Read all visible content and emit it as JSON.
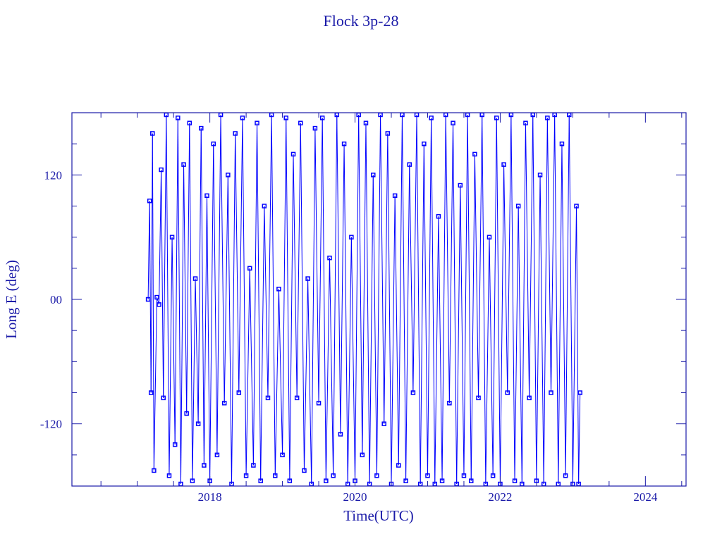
{
  "chart_data": {
    "type": "line",
    "title": "Flock 3p-28",
    "xlabel": "Time(UTC)",
    "ylabel": "Long E (deg)",
    "xlim": [
      2016.1,
      2024.56
    ],
    "ylim": [
      -180,
      180
    ],
    "xticks": [
      2018,
      2020,
      2022,
      2024
    ],
    "xtick_labels": [
      "2018",
      "2020",
      "2022",
      "2024"
    ],
    "yticks": [
      120,
      0,
      -120
    ],
    "ytick_labels": [
      "120",
      "00",
      "-120"
    ],
    "grid": false,
    "markers": "square",
    "colors": {
      "series": "#0000ff",
      "axes": "#1a1aa8",
      "text": "#1a1aa8"
    },
    "series": [
      {
        "x": [
          2017.15,
          2017.17,
          2017.19,
          2017.21,
          2017.23,
          2017.27,
          2017.3,
          2017.33,
          2017.36,
          2017.4,
          2017.44,
          2017.48,
          2017.52,
          2017.56,
          2017.6,
          2017.64,
          2017.68,
          2017.72,
          2017.76,
          2017.8,
          2017.84,
          2017.88,
          2017.92,
          2017.96,
          2018.0,
          2018.05,
          2018.1,
          2018.15,
          2018.2,
          2018.25,
          2018.3,
          2018.35,
          2018.4,
          2018.45,
          2018.5,
          2018.55,
          2018.6,
          2018.65,
          2018.7,
          2018.75,
          2018.8,
          2018.85,
          2018.9,
          2018.95,
          2019.0,
          2019.05,
          2019.1,
          2019.15,
          2019.2,
          2019.25,
          2019.3,
          2019.35,
          2019.4,
          2019.45,
          2019.5,
          2019.55,
          2019.6,
          2019.65,
          2019.7,
          2019.75,
          2019.8,
          2019.85,
          2019.9,
          2019.95,
          2020.0,
          2020.05,
          2020.1,
          2020.15,
          2020.2,
          2020.25,
          2020.3,
          2020.35,
          2020.4,
          2020.45,
          2020.5,
          2020.55,
          2020.6,
          2020.65,
          2020.7,
          2020.75,
          2020.8,
          2020.85,
          2020.9,
          2020.95,
          2021.0,
          2021.05,
          2021.1,
          2021.15,
          2021.2,
          2021.25,
          2021.3,
          2021.35,
          2021.4,
          2021.45,
          2021.5,
          2021.55,
          2021.6,
          2021.65,
          2021.7,
          2021.75,
          2021.8,
          2021.85,
          2021.9,
          2021.95,
          2022.0,
          2022.05,
          2022.1,
          2022.15,
          2022.2,
          2022.25,
          2022.3,
          2022.35,
          2022.4,
          2022.45,
          2022.5,
          2022.55,
          2022.6,
          2022.65,
          2022.7,
          2022.75,
          2022.8,
          2022.85,
          2022.9,
          2022.95,
          2023.0,
          2023.05,
          2023.08,
          2023.1
        ],
        "y": [
          0,
          95,
          -90,
          160,
          -165,
          2,
          -5,
          125,
          -95,
          178,
          -170,
          60,
          -140,
          175,
          -178,
          130,
          -110,
          170,
          -175,
          20,
          -120,
          165,
          -160,
          100,
          -175,
          150,
          -150,
          178,
          -100,
          120,
          -178,
          160,
          -90,
          175,
          -170,
          30,
          -160,
          170,
          -175,
          90,
          -95,
          178,
          -170,
          10,
          -150,
          175,
          -175,
          140,
          -95,
          170,
          -165,
          20,
          -178,
          165,
          -100,
          175,
          -175,
          40,
          -170,
          178,
          -130,
          150,
          -178,
          60,
          -175,
          178,
          -150,
          170,
          -178,
          120,
          -170,
          178,
          -120,
          160,
          -178,
          100,
          -160,
          178,
          -175,
          130,
          -90,
          178,
          -178,
          150,
          -170,
          175,
          -178,
          80,
          -175,
          178,
          -100,
          170,
          -178,
          110,
          -170,
          178,
          -175,
          140,
          -95,
          178,
          -178,
          60,
          -170,
          175,
          -178,
          130,
          -90,
          178,
          -175,
          90,
          -178,
          170,
          -95,
          178,
          -175,
          120,
          -178,
          175,
          -90,
          178,
          -178,
          150,
          -170,
          178,
          -178,
          90,
          -178,
          -90
        ]
      }
    ]
  }
}
